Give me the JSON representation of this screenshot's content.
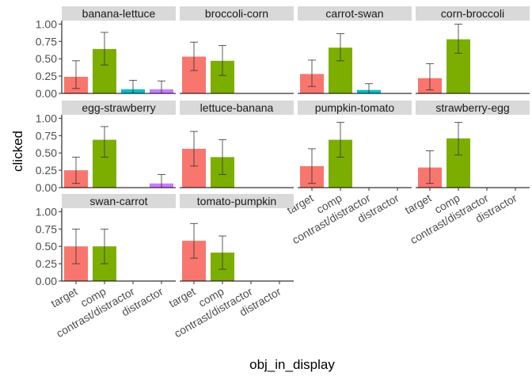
{
  "chart_data": {
    "type": "bar",
    "facet_layout": "wrap",
    "xlabel": "obj_in_display",
    "ylabel": "clicked",
    "ylim": [
      0,
      1.05
    ],
    "yticks": [
      "0.00",
      "0.25",
      "0.50",
      "0.75",
      "1.00"
    ],
    "ytick_values": [
      0,
      0.25,
      0.5,
      0.75,
      1
    ],
    "categories": [
      "target",
      "comp",
      "contrast/distractor",
      "distractor"
    ],
    "colors": [
      "#F8766D",
      "#7CAE00",
      "#00BFC4",
      "#C77CFF"
    ],
    "grid": false,
    "legend": "none",
    "panels": [
      {
        "label": "banana-lettuce",
        "values": [
          0.24,
          0.64,
          0.06,
          0.06
        ],
        "error_low": [
          0.07,
          0.41,
          0.0,
          0.0
        ],
        "error_high": [
          0.47,
          0.88,
          0.19,
          0.18
        ]
      },
      {
        "label": "broccoli-corn",
        "values": [
          0.53,
          0.47,
          0,
          0
        ],
        "error_low": [
          0.33,
          0.26,
          0,
          0
        ],
        "error_high": [
          0.74,
          0.69,
          0,
          0
        ]
      },
      {
        "label": "carrot-swan",
        "values": [
          0.28,
          0.66,
          0.05,
          0
        ],
        "error_low": [
          0.1,
          0.47,
          0.0,
          0
        ],
        "error_high": [
          0.48,
          0.86,
          0.14,
          0
        ]
      },
      {
        "label": "corn-broccoli",
        "values": [
          0.22,
          0.78,
          0,
          0
        ],
        "error_low": [
          0.05,
          0.58,
          0,
          0
        ],
        "error_high": [
          0.43,
          1.0,
          0,
          0
        ]
      },
      {
        "label": "egg-strawberry",
        "values": [
          0.25,
          0.69,
          0,
          0.06
        ],
        "error_low": [
          0.06,
          0.44,
          0,
          0.0
        ],
        "error_high": [
          0.44,
          0.88,
          0,
          0.19
        ]
      },
      {
        "label": "lettuce-banana",
        "values": [
          0.56,
          0.44,
          0,
          0
        ],
        "error_low": [
          0.31,
          0.19,
          0,
          0
        ],
        "error_high": [
          0.81,
          0.69,
          0,
          0
        ]
      },
      {
        "label": "pumpkin-tomato",
        "values": [
          0.31,
          0.69,
          0,
          0
        ],
        "error_low": [
          0.06,
          0.44,
          0,
          0
        ],
        "error_high": [
          0.56,
          0.94,
          0,
          0
        ]
      },
      {
        "label": "strawberry-egg",
        "values": [
          0.29,
          0.71,
          0,
          0
        ],
        "error_low": [
          0.06,
          0.47,
          0,
          0
        ],
        "error_high": [
          0.53,
          0.94,
          0,
          0
        ]
      },
      {
        "label": "swan-carrot",
        "values": [
          0.5,
          0.5,
          0,
          0
        ],
        "error_low": [
          0.25,
          0.25,
          0,
          0
        ],
        "error_high": [
          0.75,
          0.75,
          0,
          0
        ]
      },
      {
        "label": "tomato-pumpkin",
        "values": [
          0.58,
          0.41,
          0,
          0
        ],
        "error_low": [
          0.33,
          0.17,
          0,
          0
        ],
        "error_high": [
          0.83,
          0.65,
          0,
          0
        ]
      }
    ]
  }
}
